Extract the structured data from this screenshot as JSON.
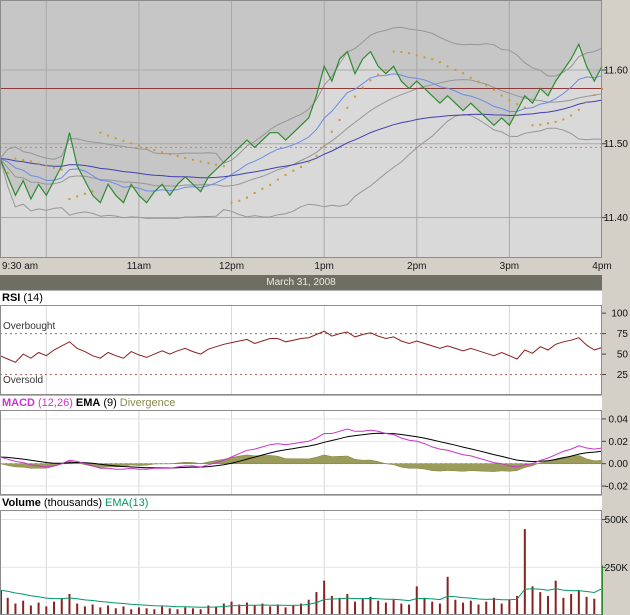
{
  "date_label": "March 31, 2008",
  "colors": {
    "plot_bg": "#c6c6c6",
    "area_fill": "#d9d9d9",
    "grid_dark": "#a9a9a9",
    "grid_light": "#d8d8d8",
    "bollinger": "#979797",
    "ema_fast": "#6b8ce8",
    "ema_slow": "#4040b0",
    "price_line": "#2e8b2e",
    "psar": "#cc9933",
    "ref_solid": "#8b3a3a",
    "ref_dotted": "#d08080",
    "rsi": "#8b2020",
    "rsi_ref": "#b06868",
    "macd": "#cc33cc",
    "macd_signal": "#000000",
    "divergence": "#9b9b5a",
    "divergence_edge": "#80803f",
    "zero_dotted": "#cc9999",
    "volume": "#8b2020",
    "volume_last": "#2e8b2e",
    "volume_ema": "#009966",
    "datebar_bg": "#6e6e62",
    "panel_border": "#8c8c8c"
  },
  "x_axis": {
    "total_min": 390,
    "interval_min": 5,
    "labels": [
      {
        "text": "9:30 am",
        "min": 0
      },
      {
        "text": "11am",
        "min": 90
      },
      {
        "text": "12pm",
        "min": 150
      },
      {
        "text": "1pm",
        "min": 210
      },
      {
        "text": "2pm",
        "min": 270
      },
      {
        "text": "3pm",
        "min": 330
      },
      {
        "text": "4pm",
        "min": 390
      }
    ]
  },
  "panels": {
    "rsi_header": {
      "title": "RSI",
      "params": "(14)"
    },
    "macd_header": {
      "macd": "MACD",
      "macd_params": "(12,26)",
      "ema": "EMA",
      "ema_params": "(9)",
      "divergence": "Divergence"
    },
    "volume_header": {
      "title": "Volume",
      "units": "(thousands)",
      "ema": "EMA(13)"
    },
    "rsi_annotations": {
      "overbought": "Overbought",
      "oversold": "Oversold"
    }
  },
  "chart_data": [
    {
      "type": "area",
      "name": "price",
      "title": "Intraday price, March 31, 2008 (9:30am - 4pm)",
      "ylim": [
        11.345,
        11.695
      ],
      "yticks": [
        {
          "label": "11.60",
          "value": 11.6
        },
        {
          "label": "11.50",
          "value": 11.5
        },
        {
          "label": "11.40",
          "value": 11.4
        }
      ],
      "ref_lines": [
        {
          "value": 11.575,
          "style": "solid"
        },
        {
          "value": 11.495,
          "style": "dotted"
        }
      ],
      "overlays": [
        "Bollinger(20,2)",
        "EMA(10)",
        "EMA(45)",
        "ParabolicSAR"
      ],
      "values": [
        11.48,
        11.455,
        11.43,
        11.45,
        11.425,
        11.445,
        11.43,
        11.45,
        11.47,
        11.515,
        11.47,
        11.45,
        11.43,
        11.42,
        11.445,
        11.43,
        11.42,
        11.445,
        11.43,
        11.42,
        11.435,
        11.445,
        11.43,
        11.445,
        11.455,
        11.445,
        11.435,
        11.455,
        11.465,
        11.475,
        11.485,
        11.495,
        11.505,
        11.495,
        11.505,
        11.515,
        11.515,
        11.505,
        11.515,
        11.525,
        11.535,
        11.565,
        11.605,
        11.585,
        11.615,
        11.625,
        11.595,
        11.615,
        11.625,
        11.605,
        11.595,
        11.605,
        11.585,
        11.575,
        11.585,
        11.575,
        11.565,
        11.555,
        11.565,
        11.555,
        11.545,
        11.555,
        11.545,
        11.535,
        11.525,
        11.535,
        11.525,
        11.545,
        11.565,
        11.555,
        11.575,
        11.565,
        11.585,
        11.6,
        11.615,
        11.635,
        11.605,
        11.585,
        11.605
      ]
    },
    {
      "type": "line",
      "name": "rsi",
      "title": "RSI (14)",
      "ylim": [
        0,
        110
      ],
      "yticks": [
        {
          "label": "100",
          "value": 100
        },
        {
          "label": "75",
          "value": 75
        },
        {
          "label": "50",
          "value": 50
        },
        {
          "label": "25",
          "value": 25
        }
      ],
      "ref_lines": [
        75,
        25
      ],
      "values": [
        48,
        44,
        40,
        50,
        45,
        52,
        48,
        55,
        60,
        65,
        57,
        53,
        48,
        45,
        52,
        48,
        45,
        53,
        49,
        46,
        50,
        54,
        50,
        54,
        57,
        53,
        50,
        56,
        59,
        62,
        64,
        66,
        68,
        63,
        66,
        69,
        69,
        65,
        67,
        69,
        70,
        74,
        78,
        72,
        75,
        77,
        71,
        74,
        76,
        72,
        69,
        71,
        66,
        63,
        66,
        63,
        60,
        57,
        60,
        57,
        54,
        57,
        54,
        51,
        48,
        52,
        48,
        44,
        55,
        51,
        59,
        55,
        62,
        65,
        67,
        70,
        61,
        55,
        58
      ]
    },
    {
      "type": "line",
      "name": "macd",
      "title": "MACD (12,26) with EMA (9) signal and Divergence histogram",
      "ylim": [
        -0.028,
        0.048
      ],
      "signal_period": 9,
      "yticks": [
        {
          "label": "0.04",
          "value": 0.04
        },
        {
          "label": "0.02",
          "value": 0.02
        },
        {
          "label": "0.00",
          "value": 0
        },
        {
          "label": "-0.02",
          "value": -0.02
        }
      ],
      "values": [
        0.006,
        0.004,
        0.002,
        0.001,
        -0.001,
        -0.002,
        -0.003,
        -0.002,
        0,
        0.003,
        0.002,
        0,
        -0.002,
        -0.004,
        -0.004,
        -0.005,
        -0.005,
        -0.004,
        -0.005,
        -0.005,
        -0.004,
        -0.004,
        -0.004,
        -0.003,
        -0.002,
        -0.002,
        -0.003,
        -0.001,
        0.001,
        0.003,
        0.006,
        0.009,
        0.012,
        0.013,
        0.015,
        0.017,
        0.018,
        0.017,
        0.018,
        0.019,
        0.02,
        0.023,
        0.027,
        0.027,
        0.029,
        0.031,
        0.029,
        0.029,
        0.03,
        0.029,
        0.027,
        0.026,
        0.023,
        0.021,
        0.02,
        0.018,
        0.015,
        0.013,
        0.012,
        0.01,
        0.008,
        0.007,
        0.005,
        0.003,
        0.001,
        0,
        -0.002,
        -0.003,
        -0.001,
        0,
        0.003,
        0.005,
        0.008,
        0.011,
        0.013,
        0.016,
        0.014,
        0.013,
        0.014
      ]
    },
    {
      "type": "bar",
      "name": "volume",
      "title": "Volume (thousands) with EMA(13)",
      "ylim": [
        0,
        550
      ],
      "ema_period": 13,
      "yticks": [
        {
          "label": "500K",
          "value": 500
        },
        {
          "label": "250K",
          "value": 250
        }
      ],
      "values": [
        130,
        90,
        60,
        75,
        50,
        65,
        45,
        70,
        85,
        110,
        60,
        45,
        55,
        40,
        50,
        35,
        45,
        30,
        40,
        35,
        30,
        45,
        35,
        30,
        40,
        35,
        30,
        50,
        45,
        60,
        70,
        55,
        65,
        50,
        60,
        45,
        55,
        40,
        50,
        60,
        80,
        120,
        180,
        100,
        90,
        110,
        70,
        85,
        95,
        75,
        65,
        80,
        60,
        55,
        150,
        90,
        70,
        60,
        200,
        80,
        65,
        75,
        55,
        70,
        90,
        60,
        80,
        100,
        450,
        150,
        120,
        100,
        180,
        90,
        110,
        130,
        95,
        85,
        260
      ]
    }
  ]
}
